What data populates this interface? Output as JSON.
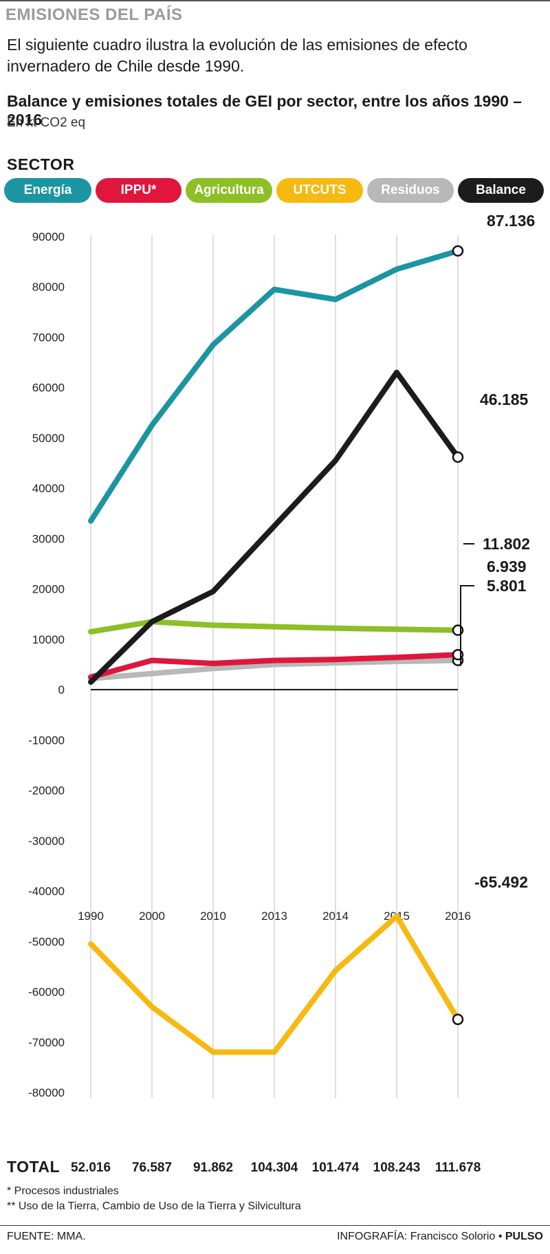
{
  "header": {
    "section": "EMISIONES DEL PAÍS",
    "intro": "El siguiente cuadro ilustra la evolución de las emisiones de efecto invernadero de Chile desde 1990.",
    "title": "Balance y emisiones totales de GEI por sector, entre los años 1990 – 2016",
    "subtitle": "En kt CO2 eq"
  },
  "legend": {
    "heading": "SECTOR",
    "items": [
      {
        "label": "Energía",
        "color": "#1b95a1"
      },
      {
        "label": "IPPU*",
        "color": "#e0163c"
      },
      {
        "label": "Agricultura",
        "color": "#8dbf26"
      },
      {
        "label": "UTCUTS",
        "color": "#f6b90f"
      },
      {
        "label": "Residuos",
        "color": "#b8b8b8"
      },
      {
        "label": "Balance",
        "color": "#1c1c1c"
      }
    ]
  },
  "chart_data": {
    "type": "line",
    "x": [
      "1990",
      "2000",
      "2010",
      "2013",
      "2014",
      "2015",
      "2016"
    ],
    "ylim": [
      -80000,
      90000
    ],
    "yticks": [
      "90000",
      "80000",
      "70000",
      "60000",
      "50000",
      "40000",
      "30000",
      "20000",
      "10000",
      "0",
      "-10000",
      "-20000",
      "-30000",
      "-40000",
      "-50000",
      "-60000",
      "-70000",
      "-80000"
    ],
    "grid": "vertical",
    "series": [
      {
        "name": "Energía",
        "color": "#1b95a1",
        "values": [
          33500,
          52500,
          68500,
          79500,
          77500,
          83500,
          87136
        ],
        "end_label": "87.136"
      },
      {
        "name": "Balance",
        "color": "#1c1c1c",
        "values": [
          1500,
          13500,
          19500,
          32500,
          45500,
          63000,
          46185
        ],
        "end_label": "46.185"
      },
      {
        "name": "Agricultura",
        "color": "#8dbf26",
        "values": [
          11500,
          13500,
          12800,
          12500,
          12200,
          12000,
          11802
        ],
        "end_label": "11.802"
      },
      {
        "name": "IPPU*",
        "color": "#e0163c",
        "values": [
          2500,
          5800,
          5200,
          5800,
          6000,
          6400,
          6939
        ],
        "end_label": "6.939"
      },
      {
        "name": "Residuos",
        "color": "#b8b8b8",
        "values": [
          2200,
          3200,
          4200,
          5000,
          5300,
          5600,
          5801
        ],
        "end_label": "5.801"
      },
      {
        "name": "UTCUTS",
        "color": "#f6b90f",
        "values": [
          -50500,
          -63000,
          -72000,
          -72000,
          -55800,
          -45000,
          -65492
        ],
        "end_label": "-65.492"
      }
    ]
  },
  "totals": {
    "label": "TOTAL",
    "values": [
      "52.016",
      "76.587",
      "91.862",
      "104.304",
      "101.474",
      "108.243",
      "111.678"
    ]
  },
  "footnotes": [
    "* Procesos industriales",
    "** Uso de la Tierra, Cambio de Uso de la Tierra y Silvicultura"
  ],
  "footer": {
    "source": "FUENTE: MMA.",
    "credit_prefix": "INFOGRAFÍA: Francisco Solorio •",
    "credit_brand": "PULSO"
  }
}
